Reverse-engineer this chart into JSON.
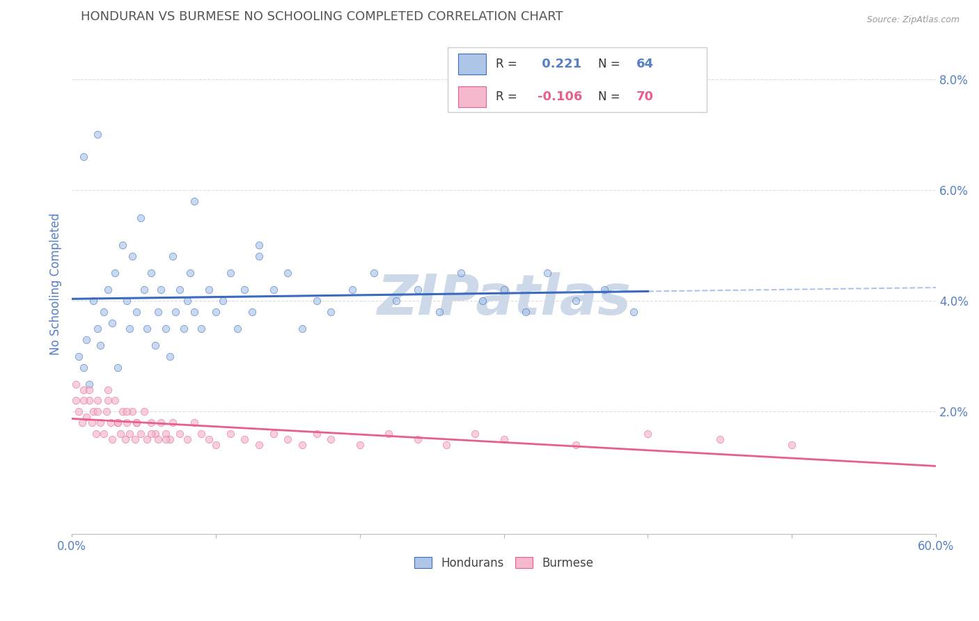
{
  "title": "HONDURAN VS BURMESE NO SCHOOLING COMPLETED CORRELATION CHART",
  "source": "Source: ZipAtlas.com",
  "ylabel": "No Schooling Completed",
  "ytick_vals": [
    0.02,
    0.04,
    0.06,
    0.08
  ],
  "ytick_labels": [
    "2.0%",
    "4.0%",
    "6.0%",
    "8.0%"
  ],
  "xlim": [
    0.0,
    0.6
  ],
  "ylim": [
    -0.002,
    0.088
  ],
  "honduran_R": 0.221,
  "honduran_N": 64,
  "burmese_R": -0.106,
  "burmese_N": 70,
  "honduran_color": "#adc6e8",
  "burmese_color": "#f5b8cc",
  "honduran_line_color": "#3a6bbf",
  "burmese_line_color": "#e8608a",
  "dashed_line_color": "#adc6e8",
  "background_color": "#ffffff",
  "grid_color": "#dddddd",
  "watermark_text": "ZIPatlas",
  "watermark_color": "#cdd8e8",
  "title_color": "#555555",
  "axis_label_color": "#5580c8",
  "scatter_alpha": 0.65,
  "scatter_size": 55,
  "honduran_x": [
    0.005,
    0.008,
    0.01,
    0.012,
    0.015,
    0.018,
    0.02,
    0.022,
    0.025,
    0.028,
    0.03,
    0.032,
    0.035,
    0.038,
    0.04,
    0.042,
    0.045,
    0.048,
    0.05,
    0.052,
    0.055,
    0.058,
    0.06,
    0.062,
    0.065,
    0.068,
    0.07,
    0.072,
    0.075,
    0.078,
    0.08,
    0.082,
    0.085,
    0.09,
    0.095,
    0.1,
    0.105,
    0.11,
    0.115,
    0.12,
    0.125,
    0.13,
    0.14,
    0.15,
    0.16,
    0.17,
    0.18,
    0.195,
    0.21,
    0.225,
    0.24,
    0.255,
    0.27,
    0.285,
    0.3,
    0.315,
    0.33,
    0.35,
    0.37,
    0.39,
    0.008,
    0.018,
    0.085,
    0.13
  ],
  "honduran_y": [
    0.03,
    0.028,
    0.033,
    0.025,
    0.04,
    0.035,
    0.032,
    0.038,
    0.042,
    0.036,
    0.045,
    0.028,
    0.05,
    0.04,
    0.035,
    0.048,
    0.038,
    0.055,
    0.042,
    0.035,
    0.045,
    0.032,
    0.038,
    0.042,
    0.035,
    0.03,
    0.048,
    0.038,
    0.042,
    0.035,
    0.04,
    0.045,
    0.038,
    0.035,
    0.042,
    0.038,
    0.04,
    0.045,
    0.035,
    0.042,
    0.038,
    0.05,
    0.042,
    0.045,
    0.035,
    0.04,
    0.038,
    0.042,
    0.045,
    0.04,
    0.042,
    0.038,
    0.045,
    0.04,
    0.042,
    0.038,
    0.045,
    0.04,
    0.042,
    0.038,
    0.066,
    0.07,
    0.058,
    0.048
  ],
  "burmese_x": [
    0.003,
    0.005,
    0.007,
    0.008,
    0.01,
    0.012,
    0.014,
    0.015,
    0.017,
    0.018,
    0.02,
    0.022,
    0.024,
    0.025,
    0.027,
    0.028,
    0.03,
    0.032,
    0.034,
    0.035,
    0.037,
    0.038,
    0.04,
    0.042,
    0.044,
    0.045,
    0.048,
    0.05,
    0.052,
    0.055,
    0.058,
    0.06,
    0.062,
    0.065,
    0.068,
    0.07,
    0.075,
    0.08,
    0.085,
    0.09,
    0.095,
    0.1,
    0.11,
    0.12,
    0.13,
    0.14,
    0.15,
    0.16,
    0.17,
    0.18,
    0.2,
    0.22,
    0.24,
    0.26,
    0.28,
    0.3,
    0.35,
    0.4,
    0.45,
    0.5,
    0.003,
    0.008,
    0.012,
    0.018,
    0.025,
    0.032,
    0.038,
    0.045,
    0.055,
    0.065
  ],
  "burmese_y": [
    0.022,
    0.02,
    0.018,
    0.024,
    0.019,
    0.022,
    0.018,
    0.02,
    0.016,
    0.022,
    0.018,
    0.016,
    0.02,
    0.024,
    0.018,
    0.015,
    0.022,
    0.018,
    0.016,
    0.02,
    0.015,
    0.018,
    0.016,
    0.02,
    0.015,
    0.018,
    0.016,
    0.02,
    0.015,
    0.018,
    0.016,
    0.015,
    0.018,
    0.016,
    0.015,
    0.018,
    0.016,
    0.015,
    0.018,
    0.016,
    0.015,
    0.014,
    0.016,
    0.015,
    0.014,
    0.016,
    0.015,
    0.014,
    0.016,
    0.015,
    0.014,
    0.016,
    0.015,
    0.014,
    0.016,
    0.015,
    0.014,
    0.016,
    0.015,
    0.014,
    0.025,
    0.022,
    0.024,
    0.02,
    0.022,
    0.018,
    0.02,
    0.018,
    0.016,
    0.015
  ]
}
